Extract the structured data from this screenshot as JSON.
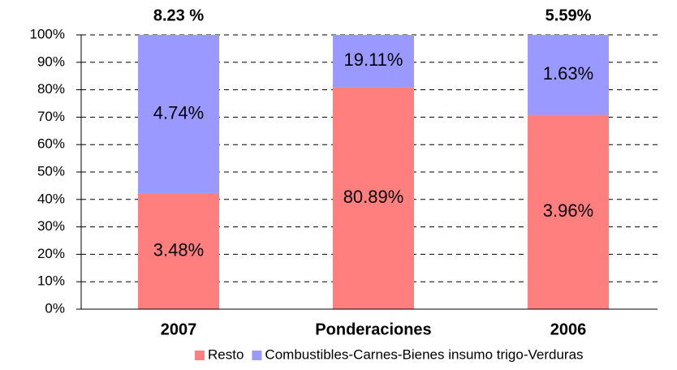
{
  "chart_data": {
    "type": "bar",
    "stacking": "percent",
    "categories": [
      "2007",
      "Ponderaciones",
      "2006"
    ],
    "top_labels": [
      "8.23 %",
      null,
      "5.59%"
    ],
    "series": [
      {
        "name": "Resto",
        "color": "#ff7f7f",
        "values": [
          3.48,
          80.89,
          3.96
        ],
        "value_labels": [
          "3.48%",
          "80.89%",
          "3.96%"
        ]
      },
      {
        "name": "Combustibles-Carnes-Bienes insumo trigo-Verduras",
        "color": "#9999ff",
        "values": [
          4.74,
          19.11,
          1.63
        ],
        "value_labels": [
          "4.74%",
          "19.11%",
          "1.63%"
        ]
      }
    ],
    "ylim": [
      0,
      100
    ],
    "yticks": [
      {
        "value": 0,
        "label": "0%"
      },
      {
        "value": 10,
        "label": "10%"
      },
      {
        "value": 20,
        "label": "20%"
      },
      {
        "value": 30,
        "label": "30%"
      },
      {
        "value": 40,
        "label": "40%"
      },
      {
        "value": 50,
        "label": "50%"
      },
      {
        "value": 60,
        "label": "60%"
      },
      {
        "value": 70,
        "label": "70%"
      },
      {
        "value": 80,
        "label": "80%"
      },
      {
        "value": 90,
        "label": "90%"
      },
      {
        "value": 100,
        "label": "100%"
      }
    ],
    "grid": true,
    "legend": "bottom"
  }
}
